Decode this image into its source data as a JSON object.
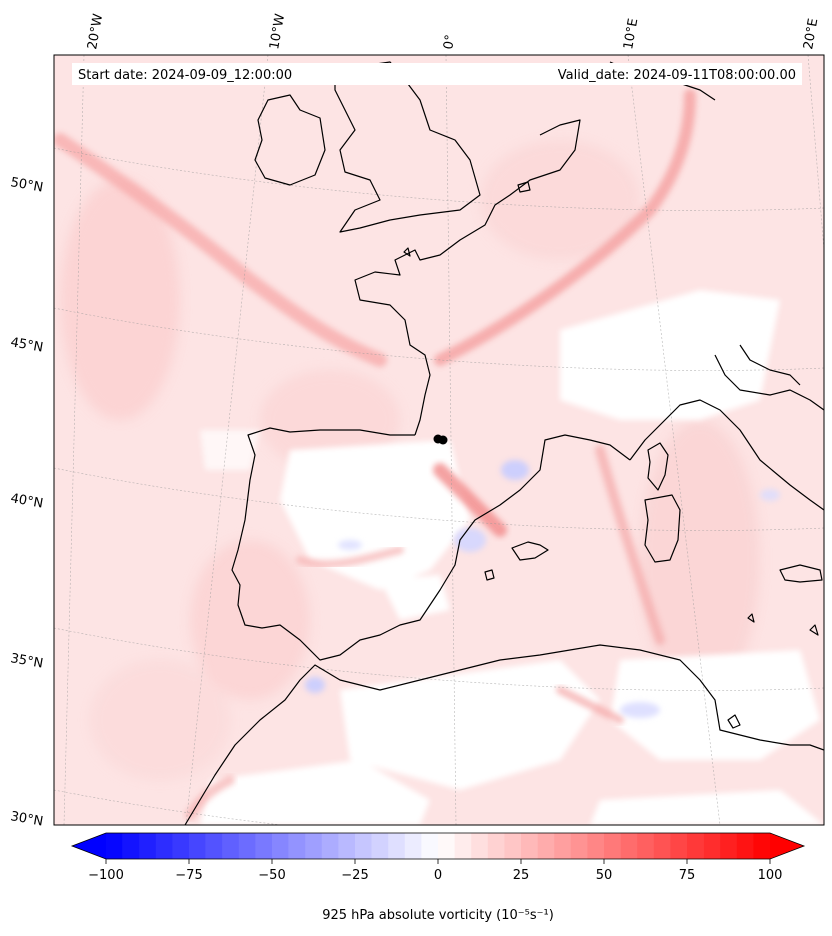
{
  "header": {
    "start_date": "Start date: 2024-09-09_12:00:00",
    "valid_date": "Valid_date: 2024-09-11T08:00:00.00"
  },
  "map": {
    "lon_labels": [
      "20°W",
      "10°W",
      "0°",
      "10°E",
      "20°E"
    ],
    "lat_labels": [
      "50°N",
      "45°N",
      "40°N",
      "35°N",
      "30°N"
    ],
    "coastline_color": "#000000",
    "gridline_style": "dotted grey",
    "field": "925 hPa absolute vorticity",
    "marker_label": ""
  },
  "colorbar": {
    "ticks": [
      "−100",
      "−75",
      "−50",
      "−25",
      "0",
      "25",
      "50",
      "75",
      "100"
    ],
    "tick_values": [
      -100,
      -75,
      -50,
      -25,
      0,
      25,
      50,
      75,
      100
    ],
    "min": -100,
    "max": 100,
    "label": "925 hPa absolute vorticity (10⁻⁵s⁻¹)",
    "colormap": "bwr",
    "low_color": "#0000ff",
    "mid_color": "#ffffff",
    "high_color": "#ff0000"
  }
}
